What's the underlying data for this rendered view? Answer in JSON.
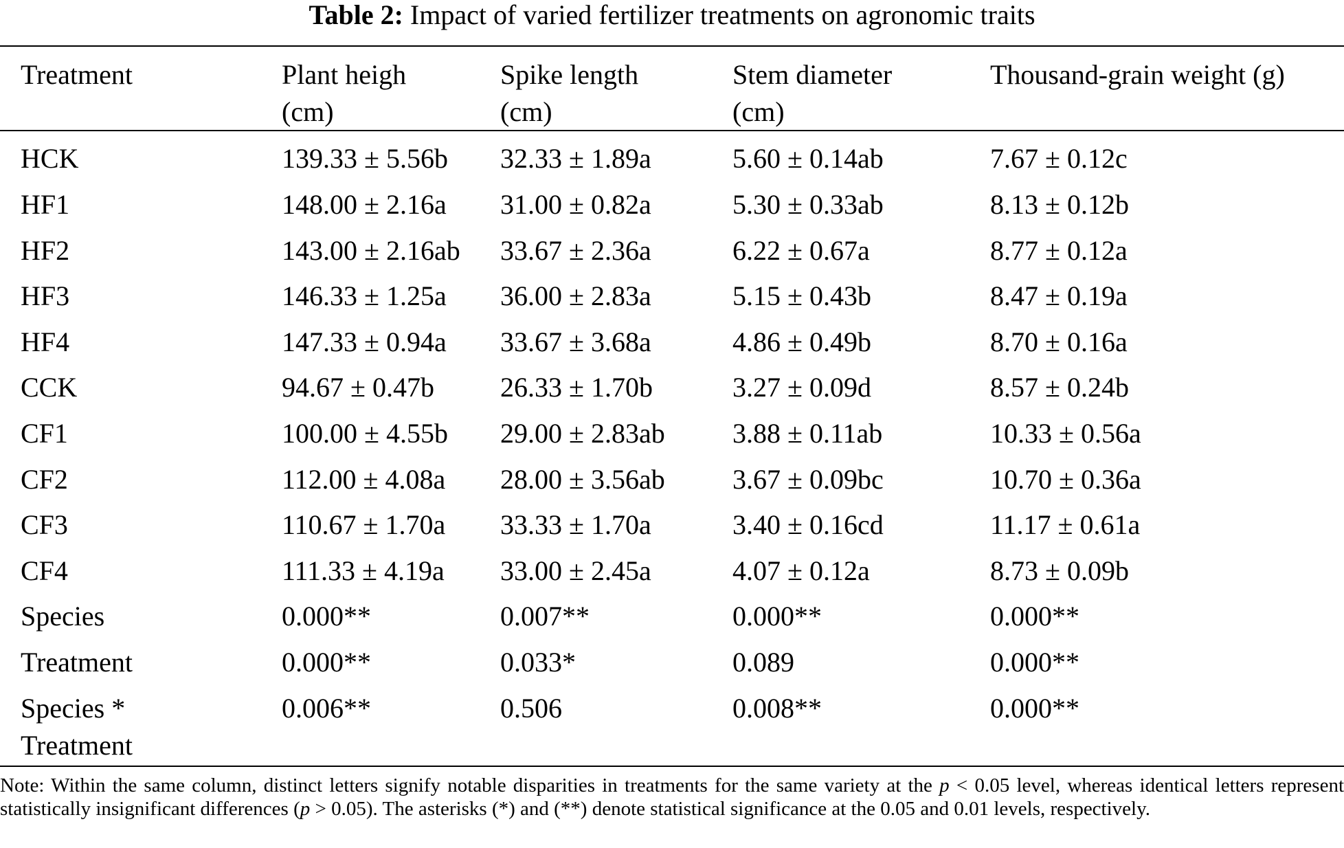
{
  "caption": {
    "label": "Table 2:",
    "title": "Impact of varied fertilizer treatments on agronomic traits"
  },
  "columns": [
    {
      "line1": "Treatment",
      "line2": ""
    },
    {
      "line1": "Plant heigh",
      "line2": "(cm)"
    },
    {
      "line1": "Spike length",
      "line2": "(cm)"
    },
    {
      "line1": "Stem diameter",
      "line2": "(cm)"
    },
    {
      "line1": "Thousand-grain weight (g)",
      "line2": ""
    }
  ],
  "rows": [
    [
      "HCK",
      "139.33 ± 5.56b",
      "32.33 ± 1.89a",
      "5.60 ± 0.14ab",
      "7.67 ± 0.12c"
    ],
    [
      "HF1",
      "148.00 ± 2.16a",
      "31.00 ± 0.82a",
      "5.30 ± 0.33ab",
      "8.13 ± 0.12b"
    ],
    [
      "HF2",
      "143.00 ± 2.16ab",
      "33.67 ± 2.36a",
      "6.22 ± 0.67a",
      "8.77 ± 0.12a"
    ],
    [
      "HF3",
      "146.33 ± 1.25a",
      "36.00 ± 2.83a",
      "5.15 ± 0.43b",
      "8.47 ± 0.19a"
    ],
    [
      "HF4",
      "147.33 ± 0.94a",
      "33.67 ± 3.68a",
      "4.86 ± 0.49b",
      "8.70 ± 0.16a"
    ],
    [
      "CCK",
      "94.67 ± 0.47b",
      "26.33 ± 1.70b",
      "3.27 ± 0.09d",
      "8.57 ± 0.24b"
    ],
    [
      "CF1",
      "100.00 ± 4.55b",
      "29.00 ± 2.83ab",
      "3.88 ± 0.11ab",
      "10.33 ± 0.56a"
    ],
    [
      "CF2",
      "112.00 ± 4.08a",
      "28.00 ± 3.56ab",
      "3.67 ± 0.09bc",
      "10.70 ± 0.36a"
    ],
    [
      "CF3",
      "110.67 ± 1.70a",
      "33.33 ± 1.70a",
      "3.40 ± 0.16cd",
      "11.17 ± 0.61a"
    ],
    [
      "CF4",
      "111.33 ± 4.19a",
      "33.00 ± 2.45a",
      "4.07 ± 0.12a",
      "8.73 ± 0.09b"
    ],
    [
      "Species",
      "0.000**",
      "0.007**",
      "0.000**",
      "0.000**"
    ],
    [
      "Treatment",
      "0.000**",
      "0.033*",
      "0.089",
      "0.000**"
    ],
    [
      "Species * Treatment",
      "0.006**",
      "0.506",
      "0.008**",
      "0.000**"
    ]
  ],
  "note": {
    "part1": "Note: Within the same column, distinct letters signify notable disparities in treatments for the same variety at the ",
    "p1": "p",
    "part2": " < 0.05 level, whereas identical letters represent statistically insignificant differences (",
    "p2": "p",
    "part3": " > 0.05). The asterisks (*) and (**) denote statistical significance at the 0.05 and 0.01 levels, respectively."
  }
}
